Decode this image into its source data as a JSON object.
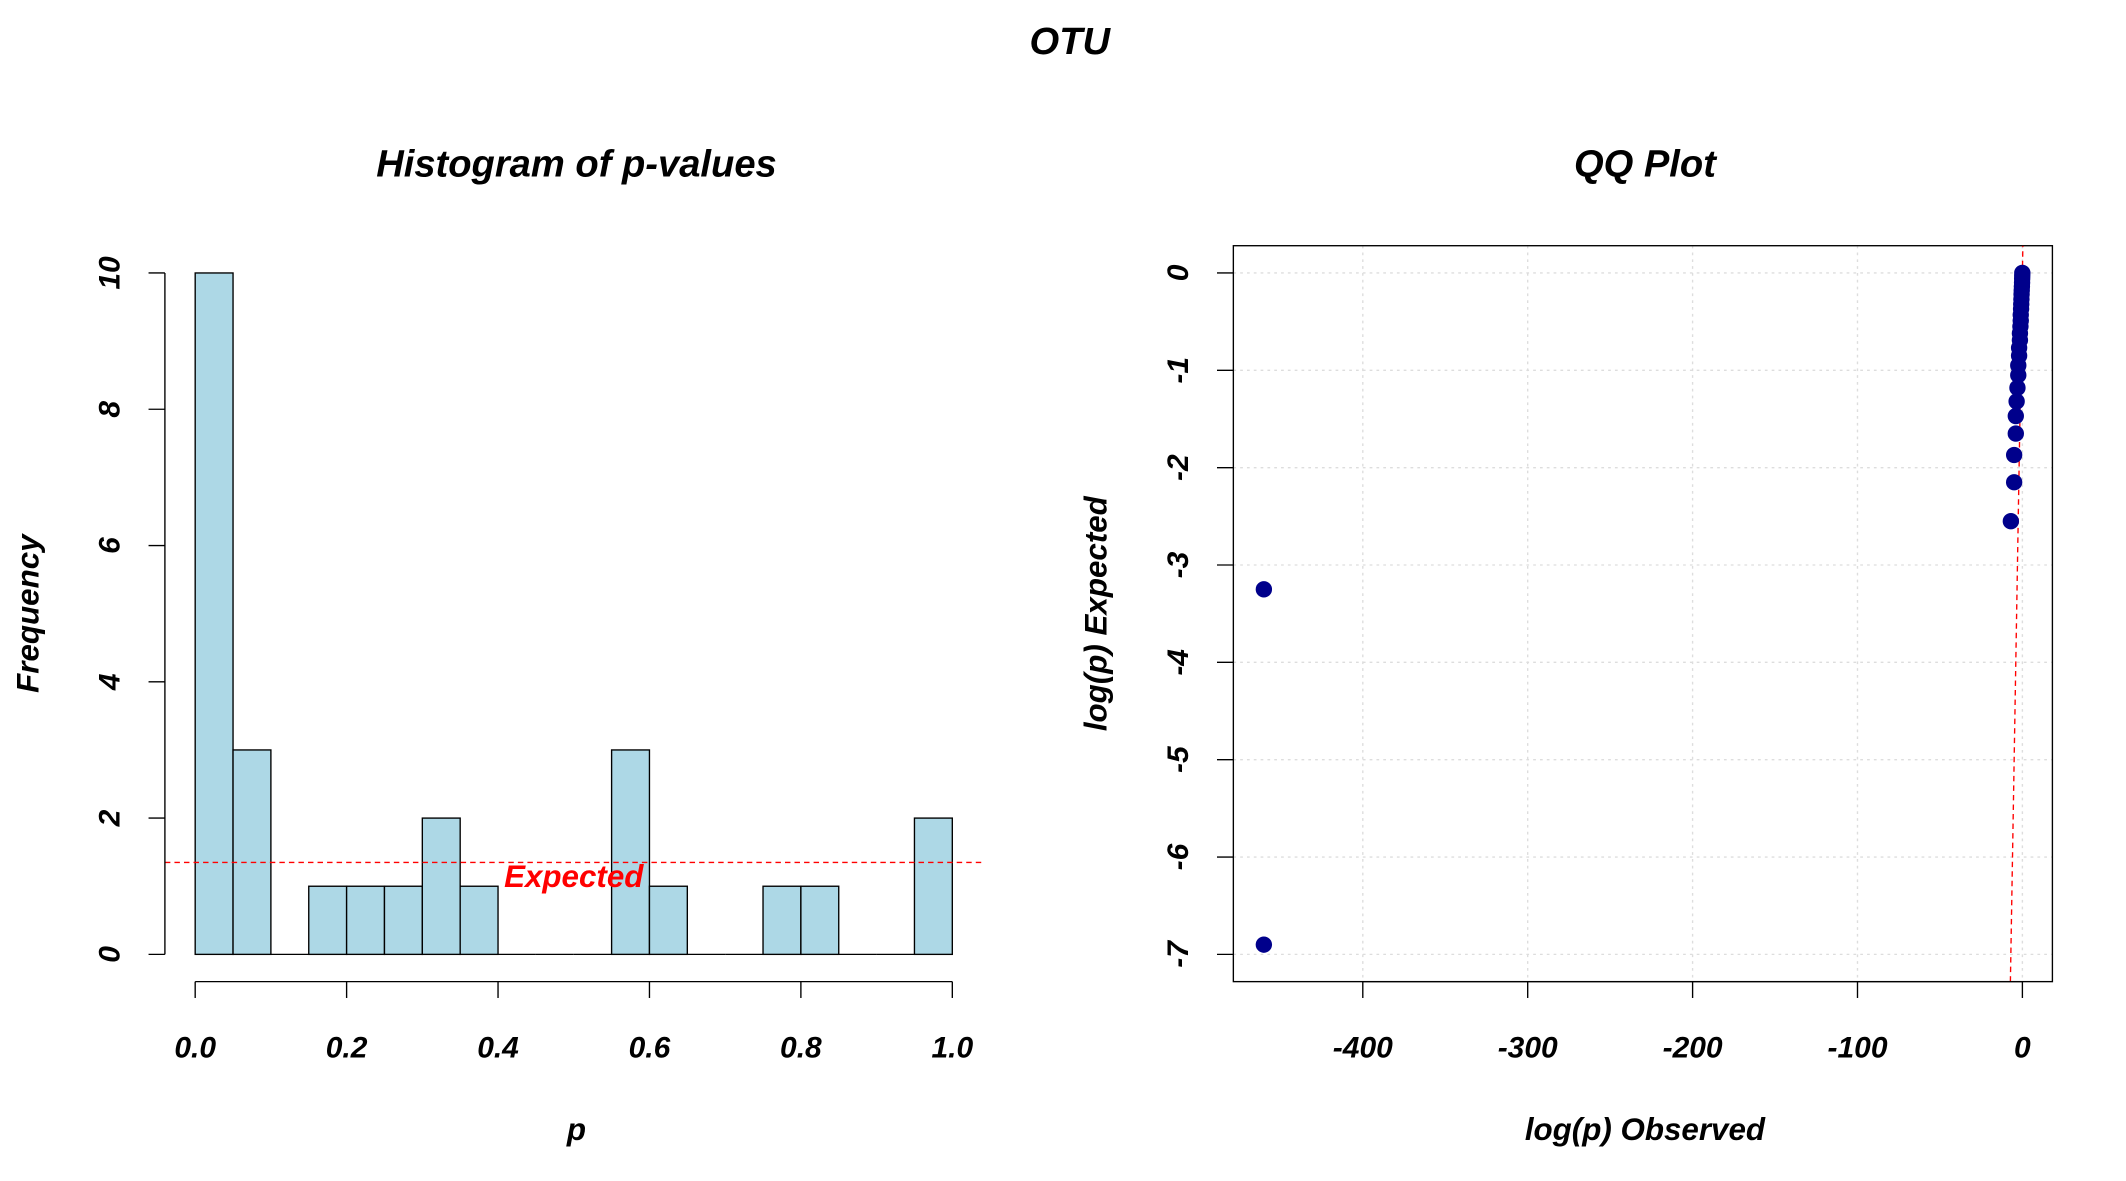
{
  "title": "OTU",
  "chart_data": [
    {
      "type": "histogram",
      "title": "Histogram of p-values",
      "x_label": "p",
      "y_label": "Frequency",
      "bins": [
        0,
        0.05,
        0.1,
        0.15,
        0.2,
        0.25,
        0.3,
        0.35,
        0.4,
        0.45,
        0.5,
        0.55,
        0.6,
        0.65,
        0.7,
        0.75,
        0.8,
        0.85,
        0.9,
        0.95,
        1
      ],
      "values": [
        10,
        3,
        0,
        1,
        1,
        1,
        2,
        1,
        0,
        0,
        0,
        3,
        1,
        0,
        0,
        1,
        1,
        0,
        0,
        2
      ],
      "color": "#add8e6",
      "expected": 1.35,
      "expected_label": "Expected",
      "expected_color": "#ff0000",
      "xlim": [
        -0.04,
        1.04
      ],
      "ylim": [
        -0.4,
        10.4
      ],
      "xticks": [
        {
          "value": 0,
          "label": "0.0"
        },
        {
          "value": 0.2,
          "label": "0.2"
        },
        {
          "value": 0.4,
          "label": "0.4"
        },
        {
          "value": 0.6,
          "label": "0.6"
        },
        {
          "value": 0.8,
          "label": "0.8"
        },
        {
          "value": 1,
          "label": "1.0"
        }
      ],
      "yticks": [
        0,
        2,
        4,
        6,
        8,
        10
      ]
    },
    {
      "type": "scatter",
      "title": "QQ Plot",
      "x_label": "log(p) Observed",
      "y_label": "log(p) Expected",
      "x": [
        -460,
        -460,
        -7,
        -5,
        -5,
        -4,
        -4,
        -3.5,
        -3,
        -2.5,
        -2.5,
        -2,
        -2,
        -1.5,
        -1.5,
        -1.2,
        -1,
        -1,
        -0.8,
        -0.7,
        -0.6,
        -0.5,
        -0.4,
        -0.3,
        -0.2,
        -0.15,
        -0.1,
        -0.05
      ],
      "y": [
        -6.9,
        -3.25,
        -2.55,
        -2.15,
        -1.87,
        -1.65,
        -1.47,
        -1.32,
        -1.18,
        -1.05,
        -0.95,
        -0.85,
        -0.77,
        -0.69,
        -0.62,
        -0.55,
        -0.49,
        -0.43,
        -0.37,
        -0.32,
        -0.27,
        -0.22,
        -0.18,
        -0.14,
        -0.1,
        -0.06,
        -0.03,
        0
      ],
      "color": "#00008b",
      "abline": [
        0,
        1
      ],
      "abline_color": "#ff0000",
      "xlim": [
        -478.5,
        18.2
      ],
      "ylim": [
        -7.28,
        0.28
      ],
      "xticks": [
        -400,
        -300,
        -200,
        -100,
        0
      ],
      "yticks": [
        0,
        -1,
        -2,
        -3,
        -4,
        -5,
        -6,
        -7
      ],
      "grid": true
    }
  ]
}
